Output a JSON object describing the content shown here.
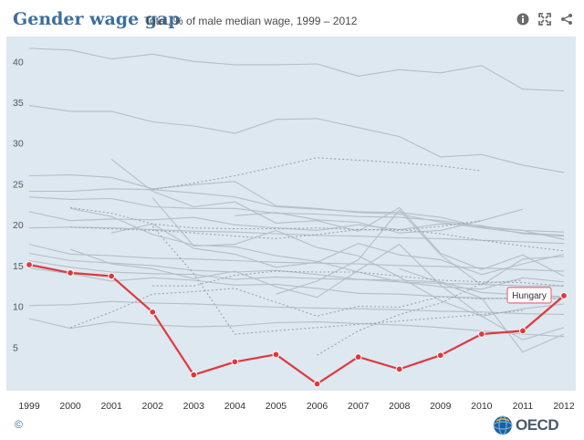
{
  "header": {
    "title": "Gender wage gap",
    "subtitle": "Total, % of male median wage, 1999 – 2012",
    "icons": [
      "info-icon",
      "expand-icon",
      "share-icon"
    ]
  },
  "footer": {
    "copyright": "©",
    "logo": "OECD"
  },
  "colors": {
    "highlight": "#e0383e",
    "background_lines": "#b6bec6",
    "plot_bg": "#dde8f0",
    "title": "#3d6f9c"
  },
  "chart_data": {
    "type": "line",
    "title": "Gender wage gap",
    "subtitle": "Total, % of male median wage, 1999 – 2012",
    "x": [
      "1999",
      "2000",
      "2001",
      "2002",
      "2003",
      "2004",
      "2005",
      "2006",
      "2007",
      "2008",
      "2009",
      "2010",
      "2011",
      "2012"
    ],
    "y_ticks": [
      5,
      10,
      15,
      20,
      25,
      30,
      35,
      40
    ],
    "ylim": [
      0,
      43
    ],
    "grid": false,
    "highlight": {
      "name": "Hungary",
      "values": [
        15.1,
        14.1,
        13.7,
        9.3,
        1.6,
        3.2,
        4.1,
        0.5,
        3.8,
        2.3,
        4.0,
        6.6,
        7.0,
        11.3
      ]
    },
    "background_series": [
      {
        "values": [
          41.6,
          41.4,
          40.3,
          40.9,
          40.0,
          39.6,
          39.6,
          39.7,
          38.2,
          39.0,
          38.6,
          39.5,
          36.6,
          36.4
        ]
      },
      {
        "values": [
          34.6,
          33.9,
          33.9,
          32.6,
          32.1,
          31.2,
          32.9,
          33.0,
          31.9,
          30.8,
          28.3,
          28.6,
          27.3,
          26.4
        ]
      },
      {
        "values": [
          26.0,
          26.1,
          25.8,
          24.4,
          24.9,
          25.3,
          22.3,
          22.0,
          21.5,
          21.3,
          20.3,
          19.6,
          19.0,
          18.7
        ]
      },
      {
        "values": [
          24.1,
          24.1,
          24.4,
          24.3,
          23.9,
          23.4,
          22.2,
          21.9,
          21.6,
          21.5,
          20.9,
          19.7,
          19.3,
          18.2
        ]
      },
      {
        "values": [
          23.4,
          23.1,
          23.2,
          22.2,
          22.0,
          22.0,
          21.4,
          21.3,
          21.0,
          20.9,
          20.5,
          19.8,
          19.3,
          19.1
        ]
      },
      {
        "values": [
          21.6,
          20.5,
          20.7,
          20.6,
          20.9,
          20.0,
          19.6,
          19.3,
          20.0,
          19.4,
          20.1,
          19.9,
          18.9,
          18.6
        ]
      },
      {
        "values": [
          19.6,
          19.7,
          19.6,
          19.4,
          19.2,
          19.1,
          18.9,
          18.7,
          18.6,
          18.4,
          18.3,
          18.1,
          17.9,
          17.7
        ]
      },
      {
        "values": [
          17.6,
          16.4,
          16.2,
          15.9,
          15.8,
          15.6,
          15.4,
          15.3,
          15.2,
          15.0,
          14.9,
          14.7,
          14.5,
          14.3
        ]
      },
      {
        "values": [
          16.5,
          15.6,
          15.3,
          15.0,
          14.4,
          14.2,
          14.4,
          13.9,
          13.3,
          13.0,
          12.8,
          12.7,
          12.5,
          12.5
        ]
      },
      {
        "values": [
          15.6,
          14.8,
          14.2,
          14.0,
          13.9,
          13.3,
          13.6,
          13.4,
          13.3,
          13.2,
          13.0,
          11.7,
          11.4,
          11.2
        ]
      },
      {
        "values": [
          14.7,
          14.0,
          13.1,
          13.5,
          13.2,
          12.6,
          12.7,
          12.2,
          11.6,
          11.5,
          11.2,
          11.0,
          10.9,
          11.1
        ]
      },
      {
        "values": [
          10.1,
          10.2,
          10.6,
          10.4,
          10.3,
          10.1,
          9.9,
          9.8,
          9.7,
          9.6,
          9.4,
          9.3,
          9.1,
          9.0
        ]
      },
      {
        "values": [
          8.5,
          7.3,
          8.1,
          7.7,
          7.5,
          7.6,
          8.0,
          8.1,
          7.9,
          7.7,
          7.4,
          7.0,
          6.6,
          6.3
        ]
      },
      {
        "values": [
          null,
          null,
          28.0,
          24.1,
          22.2,
          22.8,
          20.2,
          20.5,
          19.2,
          22.1,
          16.5,
          14.5,
          16.3,
          13.7
        ]
      },
      {
        "values": [
          null,
          null,
          19.0,
          20.1,
          17.1,
          16.4,
          14.8,
          15.4,
          17.7,
          16.3,
          15.7,
          13.9,
          15.2,
          16.4
        ]
      },
      {
        "values": [
          null,
          17.0,
          15.2,
          14.6,
          13.4,
          14.3,
          12.4,
          11.1,
          14.4,
          17.6,
          12.6,
          8.8,
          9.7,
          10.3
        ]
      },
      {
        "values": [
          null,
          null,
          null,
          23.3,
          17.4,
          17.6,
          19.3,
          17.2,
          16.2,
          13.6,
          10.7,
          8.8,
          5.9,
          7.4
        ]
      },
      {
        "values": [
          null,
          null,
          null,
          null,
          null,
          null,
          11.5,
          13.1,
          15.7,
          21.8,
          16.3,
          12.6,
          15.8,
          16.1
        ]
      },
      {
        "values": [
          null,
          null,
          null,
          null,
          null,
          21.1,
          21.5,
          20.6,
          20.3,
          19.0,
          19.3,
          20.5,
          21.9,
          null
        ]
      },
      {
        "values": [
          null,
          null,
          null,
          null,
          null,
          null,
          null,
          null,
          null,
          14.6,
          12.9,
          11.0,
          4.4,
          6.6
        ]
      },
      {
        "values": [
          null,
          22.0,
          21.0,
          18.8,
          17.5,
          17.3,
          16.2,
          15.5,
          14.2,
          13.0,
          12.4,
          12.1,
          13.5,
          13.0
        ]
      }
    ],
    "dotted_series": [
      {
        "values": [
          null,
          null,
          null,
          24.3,
          25.1,
          26.0,
          27.1,
          28.2,
          27.9,
          27.6,
          27.2,
          26.6,
          null,
          null
        ]
      },
      {
        "values": [
          null,
          22.1,
          21.4,
          20.1,
          19.6,
          19.5,
          19.5,
          19.6,
          19.4,
          19.3,
          19.8,
          20.5,
          null,
          null
        ]
      },
      {
        "values": [
          null,
          19.7,
          19.5,
          19.3,
          19.0,
          18.6,
          18.3,
          18.8,
          19.4,
          19.4,
          18.9,
          18.1,
          17.4,
          16.8
        ]
      },
      {
        "values": [
          null,
          null,
          null,
          12.5,
          12.5,
          13.8,
          14.3,
          14.2,
          14.2,
          13.7,
          13.2,
          13.0,
          12.9,
          12.5
        ]
      },
      {
        "values": [
          null,
          7.4,
          9.3,
          11.5,
          11.8,
          12.2,
          10.5,
          8.8,
          10.0,
          9.9,
          11.2,
          10.9,
          11.1,
          10.9
        ]
      },
      {
        "values": [
          null,
          null,
          null,
          19.8,
          14.0,
          6.6,
          7.0,
          7.4,
          7.8,
          8.2,
          8.6,
          9.0,
          9.5,
          null
        ]
      },
      {
        "values": [
          null,
          null,
          null,
          null,
          null,
          null,
          null,
          4.0,
          7.0,
          9.0,
          10.4,
          12.8,
          13.2,
          null
        ]
      }
    ]
  }
}
